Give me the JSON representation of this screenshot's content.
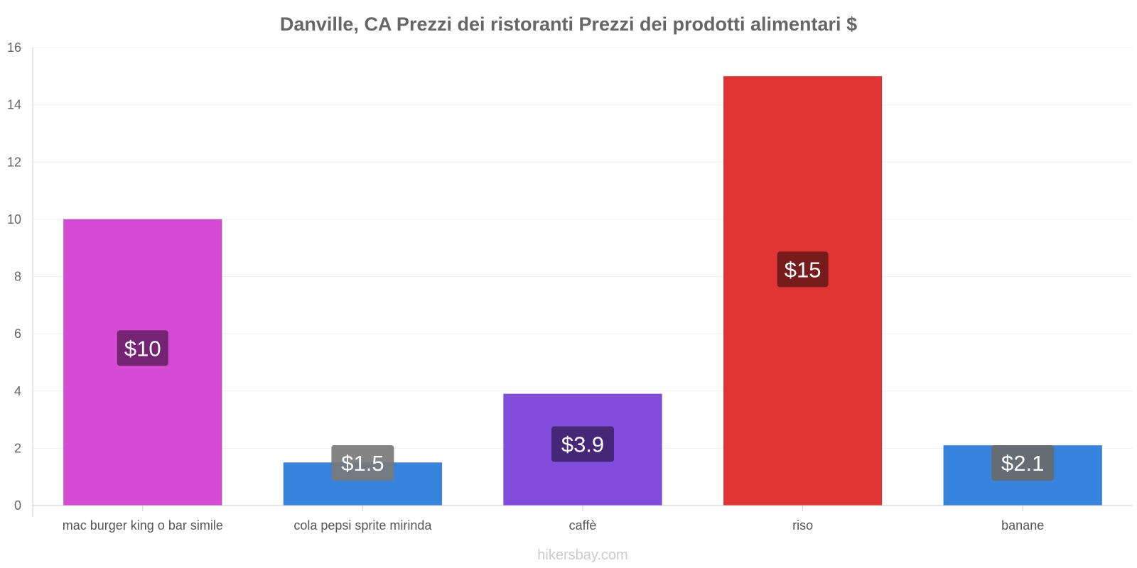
{
  "chart_data": {
    "type": "bar",
    "title": "Danville, CA Prezzi dei ristoranti Prezzi dei prodotti alimentari $",
    "categories": [
      "mac burger king o bar simile",
      "cola pepsi sprite mirinda",
      "caffè",
      "riso",
      "banane"
    ],
    "values": [
      10,
      1.5,
      3.9,
      15,
      2.1
    ],
    "value_labels": [
      "$10",
      "$1.5",
      "$3.9",
      "$15",
      "$2.1"
    ],
    "bar_colors": [
      "#d64bd4",
      "#3784de",
      "#814cdb",
      "#e03535",
      "#3784de"
    ],
    "label_bg_colors": [
      "#6b2169",
      "#7a7a7a",
      "#41236e",
      "#6e1a1a",
      "#6a6a6a"
    ],
    "xlabel": "",
    "ylabel": "",
    "ylim": [
      0,
      16
    ],
    "yticks": [
      0,
      2,
      4,
      6,
      8,
      10,
      12,
      14,
      16
    ],
    "grid": true,
    "legend": "none"
  },
  "footer": {
    "credit": "hikersbay.com"
  }
}
